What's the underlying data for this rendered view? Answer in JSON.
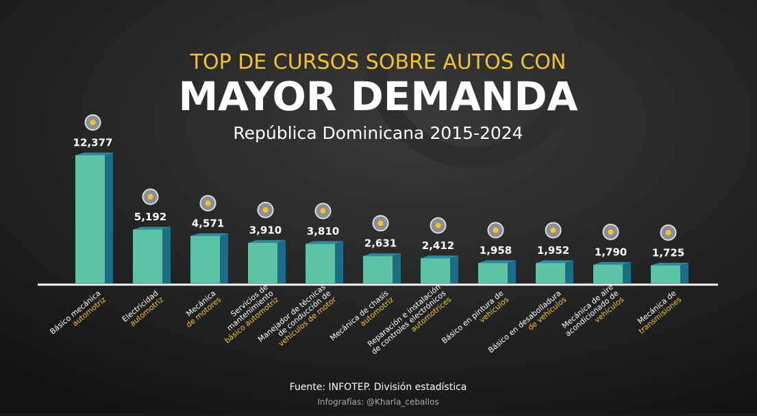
{
  "chart_data": {
    "type": "bar3d",
    "title_top": "TOP DE CURSOS SOBRE AUTOS CON",
    "title": "MAYOR DEMANDA",
    "subtitle": "República Dominicana 2015-2024",
    "source": "Fuente: INFOTEP. División estadística",
    "credit": "Infografías: @Kharla_ceballos",
    "categories": [
      {
        "lines": [
          "Básico mecánica"
        ],
        "highlight": [
          "automotriz"
        ]
      },
      {
        "lines": [
          "Electricidad"
        ],
        "highlight": [
          "automotriz"
        ]
      },
      {
        "lines": [
          "Mecánica"
        ],
        "highlight": [
          "de motores"
        ]
      },
      {
        "lines": [
          "Servicios de",
          "mantenimiento"
        ],
        "highlight": [
          "básico automotriz"
        ]
      },
      {
        "lines": [
          "Manejador de técnicas",
          "de conducción de"
        ],
        "highlight": [
          "vehículos de motor"
        ]
      },
      {
        "lines": [
          "Mecánica de chasis"
        ],
        "highlight": [
          "automotriz"
        ]
      },
      {
        "lines": [
          "Reparación e instalación",
          "de controles electrónicos"
        ],
        "highlight": [
          "automotrices"
        ]
      },
      {
        "lines": [
          "Básico en pintura de"
        ],
        "highlight": [
          "vehículos"
        ]
      },
      {
        "lines": [
          "Básico en desabolladura"
        ],
        "highlight": [
          "de vehículos"
        ]
      },
      {
        "lines": [
          "Mecánica de aire",
          "acondicionado de"
        ],
        "highlight": [
          "vehículos"
        ]
      },
      {
        "lines": [
          "Mecánica de"
        ],
        "highlight": [
          "transmisiones"
        ]
      }
    ],
    "values": [
      12377,
      5192,
      4571,
      3910,
      3810,
      2631,
      2412,
      1958,
      1952,
      1790,
      1725
    ],
    "value_labels": [
      "12,377",
      "5,192",
      "4,571",
      "3,910",
      "3,810",
      "2,631",
      "2,412",
      "1,958",
      "1,952",
      "1,790",
      "1,725"
    ],
    "color": "#5dc3a6",
    "side_color": "#1f6a84",
    "highlight_color": "#f2c230"
  }
}
